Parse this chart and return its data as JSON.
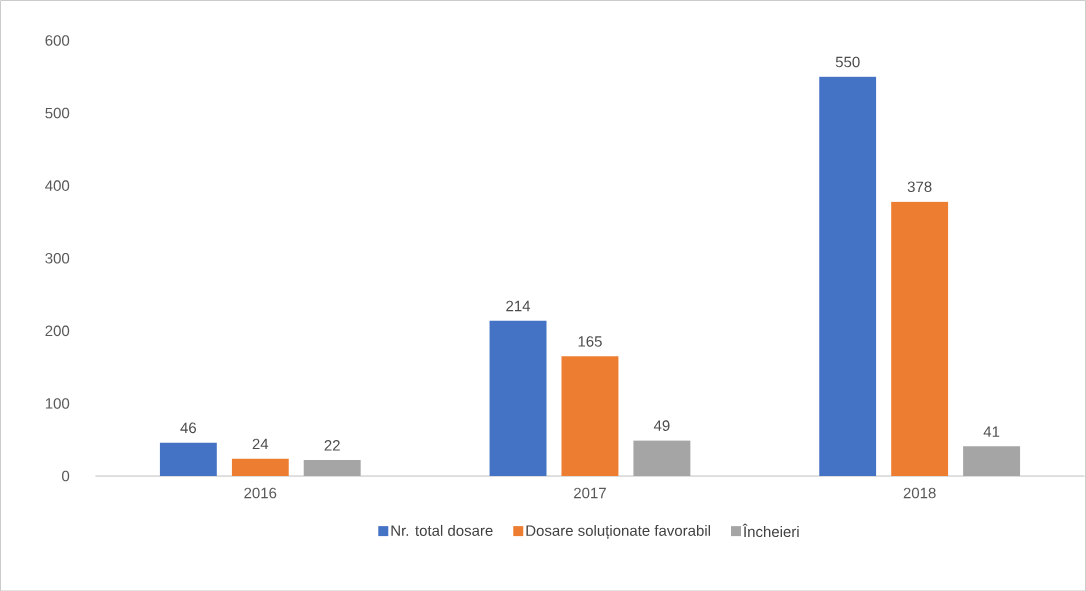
{
  "chart_data": {
    "type": "bar",
    "categories": [
      "2016",
      "2017",
      "2018"
    ],
    "series": [
      {
        "name": "Nr. total dosare",
        "color": "#4472c4",
        "values": [
          46,
          214,
          550
        ]
      },
      {
        "name": "Dosare soluționate favorabil",
        "color": "#ed7d31",
        "values": [
          24,
          165,
          378
        ]
      },
      {
        "name": "Încheieri",
        "color": "#a5a5a5",
        "values": [
          22,
          49,
          41
        ]
      }
    ],
    "ylim": [
      0,
      600
    ],
    "yticks": [
      0,
      100,
      200,
      300,
      400,
      500,
      600
    ],
    "data_labels": true,
    "legend": "bottom",
    "grid": false
  }
}
